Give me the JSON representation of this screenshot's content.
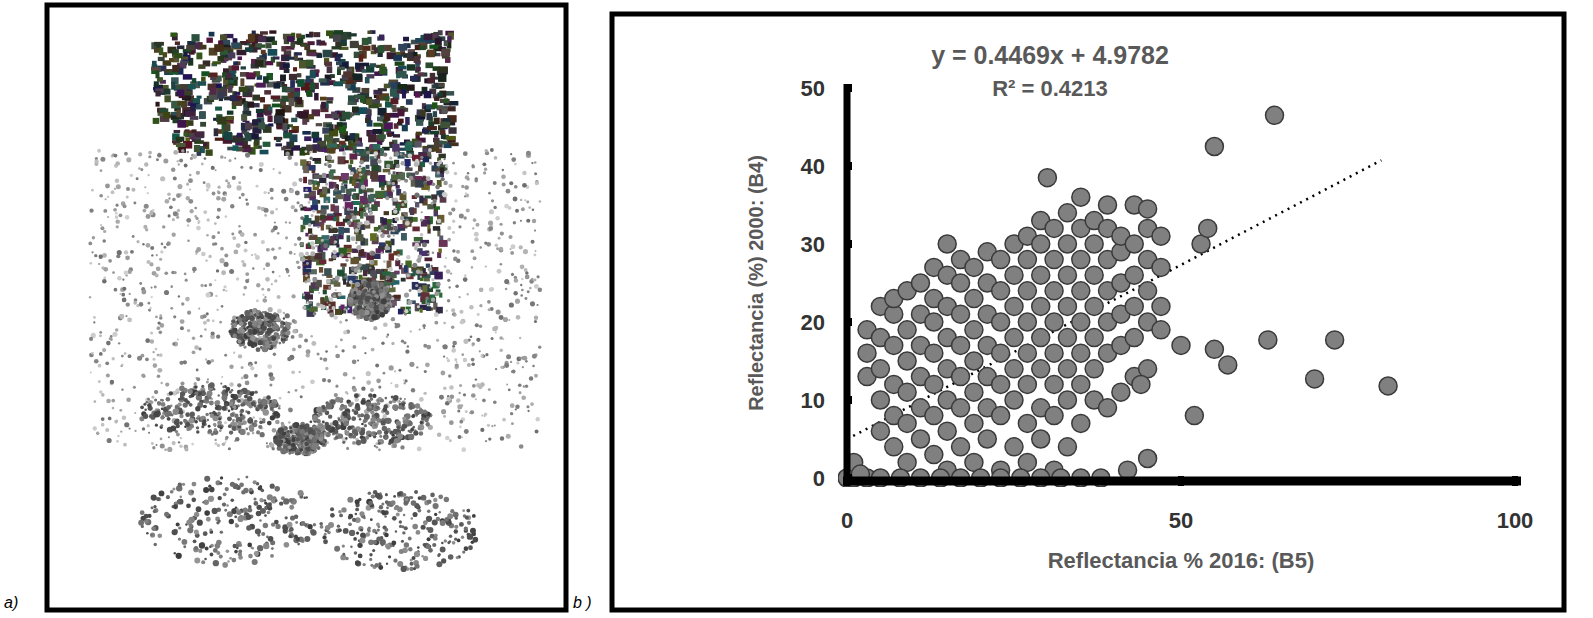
{
  "panel_labels": [
    "a)",
    "b )"
  ],
  "chart_data": {
    "type": "scatter",
    "x_label": "Reflectancia % 2016: (B5)",
    "y_label": "Reflectancia (%) 2000: (B4)",
    "xlim": [
      0,
      100
    ],
    "xticks": [
      0,
      50,
      100
    ],
    "ylim": [
      0,
      50
    ],
    "yticks": [
      0,
      10,
      20,
      30,
      40,
      50
    ],
    "color": "#808080",
    "marker": "circle",
    "grid": false,
    "trendline": {
      "equation": "y = 0.4469x + 4.9782",
      "r_squared": "R² = 0.4213",
      "slope": 0.4469,
      "intercept": 4.9782,
      "x": [
        0,
        80
      ],
      "line_style": "dotted"
    },
    "x": [
      3,
      3,
      3,
      5,
      5,
      5,
      5,
      5,
      7,
      7,
      7,
      7,
      7,
      7,
      9,
      9,
      9,
      9,
      9,
      9,
      11,
      11,
      11,
      11,
      11,
      11,
      13,
      13,
      13,
      13,
      13,
      13,
      13,
      15,
      15,
      15,
      15,
      15,
      15,
      15,
      15,
      17,
      17,
      17,
      17,
      17,
      17,
      17,
      19,
      19,
      19,
      19,
      19,
      19,
      19,
      21,
      21,
      21,
      21,
      21,
      21,
      21,
      23,
      23,
      23,
      23,
      23,
      23,
      23,
      25,
      25,
      25,
      25,
      25,
      25,
      25,
      27,
      27,
      27,
      27,
      27,
      27,
      27,
      27,
      29,
      29,
      29,
      29,
      29,
      29,
      29,
      29,
      31,
      31,
      31,
      31,
      31,
      31,
      31,
      31,
      33,
      33,
      33,
      33,
      33,
      33,
      33,
      33,
      35,
      35,
      35,
      35,
      35,
      35,
      35,
      35,
      37,
      37,
      37,
      37,
      37,
      37,
      37,
      39,
      39,
      39,
      39,
      39,
      39,
      39,
      41,
      41,
      41,
      41,
      41,
      41,
      43,
      43,
      43,
      43,
      43,
      43,
      45,
      45,
      45,
      45,
      45,
      47,
      47,
      47,
      0,
      1,
      3,
      5,
      8,
      11,
      14,
      17,
      20,
      23,
      26,
      29,
      32,
      35,
      38,
      30,
      55,
      64,
      63,
      73,
      70,
      81,
      55,
      57,
      52,
      44,
      47,
      50,
      53,
      54,
      45,
      42,
      1,
      2,
      45
    ],
    "values": [
      13,
      16,
      19,
      6,
      10,
      14,
      18,
      22,
      4,
      8,
      12,
      17,
      21,
      23,
      2,
      7,
      11,
      15,
      19,
      24,
      5,
      9,
      13,
      17,
      21,
      25,
      3,
      8,
      12,
      16,
      20,
      23,
      27,
      1,
      6,
      10,
      14,
      18,
      22,
      26,
      30,
      4,
      9,
      13,
      17,
      21,
      25,
      28,
      2,
      7,
      11,
      15,
      19,
      23,
      27,
      5,
      9,
      13,
      17,
      21,
      25,
      29,
      1,
      8,
      12,
      16,
      20,
      24,
      28,
      4,
      10,
      14,
      18,
      22,
      26,
      30,
      2,
      7,
      12,
      16,
      20,
      24,
      28,
      31,
      5,
      9,
      14,
      18,
      22,
      26,
      30,
      33,
      1,
      8,
      12,
      16,
      20,
      24,
      28,
      32,
      4,
      10,
      14,
      18,
      22,
      26,
      30,
      34,
      7,
      12,
      16,
      20,
      24,
      28,
      32,
      36,
      10,
      14,
      18,
      22,
      26,
      30,
      33,
      9,
      16,
      20,
      24,
      28,
      32,
      35,
      11,
      17,
      21,
      25,
      29,
      31,
      13,
      18,
      22,
      26,
      30,
      35,
      14,
      20,
      24,
      28,
      32,
      22,
      27,
      31,
      0,
      0,
      0,
      0,
      0,
      0,
      0,
      0,
      0,
      0,
      0,
      0,
      0,
      0,
      0,
      38.5,
      42.5,
      46.5,
      17.7,
      17.7,
      12.7,
      11.8,
      16.5,
      14.5,
      8,
      12,
      19,
      17,
      30,
      32,
      2.5,
      1,
      2,
      0.5,
      34.5
    ]
  }
}
